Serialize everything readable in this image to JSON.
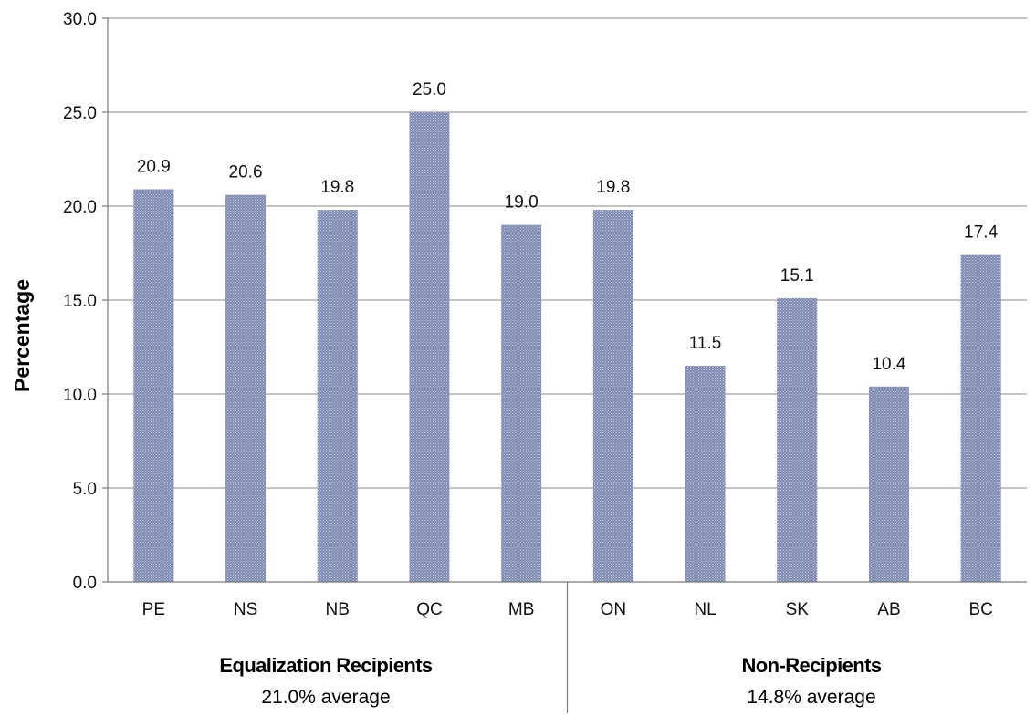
{
  "chart_data": {
    "type": "bar",
    "categories": [
      "PE",
      "NS",
      "NB",
      "QC",
      "MB",
      "ON",
      "NL",
      "SK",
      "AB",
      "BC"
    ],
    "values": [
      20.9,
      20.6,
      19.8,
      25.0,
      19.0,
      19.8,
      11.5,
      15.1,
      10.4,
      17.4
    ],
    "value_labels": [
      "20.9",
      "20.6",
      "19.8",
      "25.0",
      "19.0",
      "19.8",
      "11.5",
      "15.1",
      "10.4",
      "17.4"
    ],
    "title": "",
    "xlabel": "",
    "ylabel": "Percentage",
    "ylim": [
      0,
      30
    ],
    "yticks": [
      "0.0",
      "5.0",
      "10.0",
      "15.0",
      "20.0",
      "25.0",
      "30.0"
    ],
    "ytick_values": [
      0,
      5,
      10,
      15,
      20,
      25,
      30
    ],
    "grid": true,
    "bar_color": "#8e98bd",
    "groups": [
      {
        "name": "Equalization Recipients",
        "subtitle": "21.0% average",
        "categories": [
          "PE",
          "NS",
          "NB",
          "QC",
          "MB"
        ]
      },
      {
        "name": "Non-Recipients",
        "subtitle": "14.8% average",
        "categories": [
          "ON",
          "NL",
          "SK",
          "AB",
          "BC"
        ]
      }
    ]
  }
}
